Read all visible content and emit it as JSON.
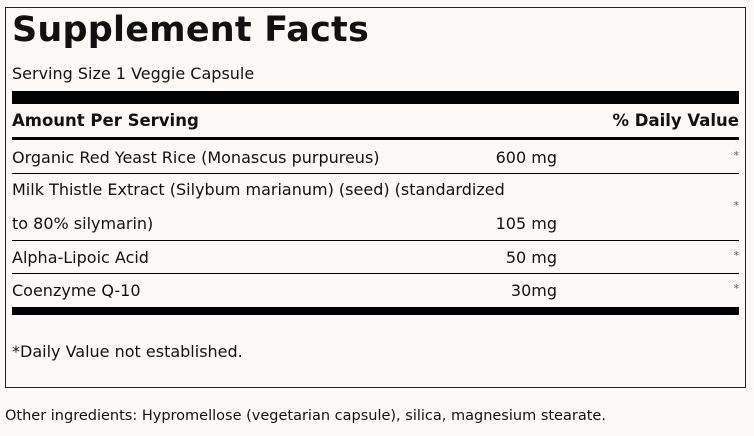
{
  "title": "Supplement Facts",
  "serving_size": "Serving Size 1 Veggie Capsule",
  "header": {
    "amount": "Amount Per Serving",
    "daily_value": "% Daily Value"
  },
  "rows": [
    {
      "name": "Organic Red Yeast Rice (Monascus purpureus)",
      "amount": "600 mg",
      "dv": "*"
    },
    {
      "name_line1": "Milk Thistle Extract (Silybum marianum) (seed) (standardized",
      "name_line2": "to 80% silymarin)",
      "amount": "105 mg",
      "dv": "*"
    },
    {
      "name": "Alpha-Lipoic Acid",
      "amount": "50 mg",
      "dv": "*"
    },
    {
      "name": "Coenzyme Q-10",
      "amount": "30mg",
      "dv": "*"
    }
  ],
  "footnote": "*Daily Value not established.",
  "other_ingredients": "Other ingredients: Hypromellose (vegetarian capsule), silica, magnesium stearate."
}
